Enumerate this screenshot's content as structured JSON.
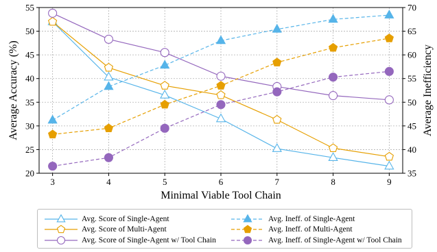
{
  "chart_data": {
    "type": "line",
    "xlabel": "Minimal Viable Tool Chain",
    "ylabel_left": "Average Accuracy (%)",
    "ylabel_right": "Average Inefficiency",
    "x": [
      3,
      4,
      5,
      6,
      7,
      8,
      9
    ],
    "x_ticks": [
      "3",
      "4",
      "5",
      "6",
      "7",
      "8",
      "9"
    ],
    "ylim_left": [
      20,
      55
    ],
    "ylim_right": [
      35,
      70
    ],
    "yticks_left": [
      "20",
      "25",
      "30",
      "35",
      "40",
      "45",
      "50",
      "55"
    ],
    "yticks_right": [
      "35",
      "40",
      "45",
      "50",
      "55",
      "60",
      "65",
      "70"
    ],
    "grid": true,
    "legend_position": "bottom",
    "series": [
      {
        "name": "Avg. Score of Single-Agent",
        "axis": "left",
        "style": "solid",
        "marker": "triangle",
        "filled": false,
        "color": "#56B4E9",
        "values": [
          52.0,
          40.3,
          36.5,
          31.5,
          25.2,
          23.3,
          21.5
        ]
      },
      {
        "name": "Avg. Score of Multi-Agent",
        "axis": "left",
        "style": "solid",
        "marker": "pentagon",
        "filled": false,
        "color": "#E69F00",
        "values": [
          52.0,
          42.3,
          38.5,
          36.5,
          31.3,
          25.3,
          23.5
        ]
      },
      {
        "name": "Avg. Score of Single-Agent w/ Tool Chain",
        "axis": "left",
        "style": "solid",
        "marker": "circle",
        "filled": false,
        "color": "#9467BD",
        "values": [
          53.8,
          48.3,
          45.5,
          40.5,
          38.3,
          36.4,
          35.5
        ]
      },
      {
        "name": "Avg. Ineff. of Single-Agent",
        "axis": "right",
        "style": "dashed",
        "marker": "triangle",
        "filled": true,
        "color": "#56B4E9",
        "values": [
          46.2,
          53.3,
          57.8,
          63.0,
          65.4,
          67.5,
          68.4
        ]
      },
      {
        "name": "Avg. Ineff. of Multi-Agent",
        "axis": "right",
        "style": "dashed",
        "marker": "pentagon",
        "filled": true,
        "color": "#E69F00",
        "values": [
          43.2,
          44.5,
          49.5,
          53.5,
          58.4,
          61.5,
          63.5
        ]
      },
      {
        "name": "Avg. Ineff. of Single-Agent w/ Tool Chain",
        "axis": "right",
        "style": "dashed",
        "marker": "circle",
        "filled": true,
        "color": "#9467BD",
        "values": [
          36.5,
          38.3,
          44.5,
          49.5,
          52.2,
          55.3,
          56.5
        ]
      }
    ]
  }
}
